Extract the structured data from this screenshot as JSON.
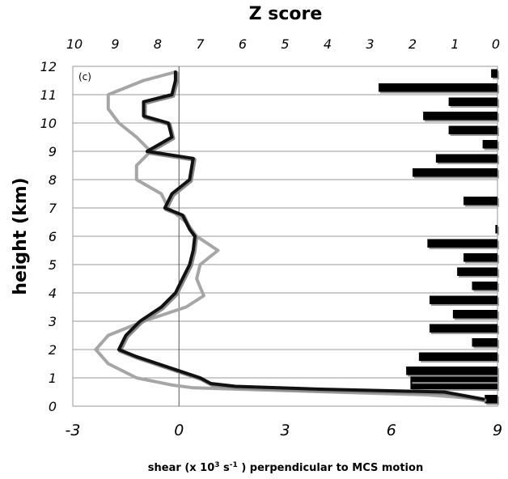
{
  "chart_data": {
    "type": "line",
    "panel_label": "(c)",
    "top_axis_title": "Z score",
    "y_axis_title": "height (km)",
    "x_axis_title": {
      "pre": "shear (x 10",
      "sup1": "3",
      "mid": " s",
      "sup2": "-1",
      "post": " ) perpendicular to MCS motion"
    },
    "x_range": [
      -3,
      9
    ],
    "x_ticks": [
      -3,
      0,
      3,
      6,
      9
    ],
    "z_range": [
      10,
      0
    ],
    "z_ticks": [
      10,
      9,
      8,
      7,
      6,
      5,
      4,
      3,
      2,
      1,
      0
    ],
    "y_range": [
      0,
      12
    ],
    "y_ticks": [
      0,
      1,
      2,
      3,
      4,
      5,
      6,
      7,
      8,
      9,
      10,
      11,
      12
    ],
    "grid": "horizontal",
    "colors": {
      "black_series": "#111111",
      "gray_series": "#a6a6a6",
      "zbar": "#000000",
      "zbar_shadow": "#9a9a9a"
    },
    "series": [
      {
        "color": "black",
        "points": [
          [
            8.6,
            0.25
          ],
          [
            7.5,
            0.5
          ],
          [
            4.0,
            0.6
          ],
          [
            1.6,
            0.7
          ],
          [
            0.9,
            0.8
          ],
          [
            0.6,
            1.0
          ],
          [
            0.0,
            1.25
          ],
          [
            -0.6,
            1.5
          ],
          [
            -1.2,
            1.75
          ],
          [
            -1.7,
            2.0
          ],
          [
            -1.5,
            2.5
          ],
          [
            -1.1,
            3.0
          ],
          [
            -0.5,
            3.5
          ],
          [
            -0.1,
            4.0
          ],
          [
            0.1,
            4.5
          ],
          [
            0.3,
            5.0
          ],
          [
            0.4,
            5.5
          ],
          [
            0.45,
            6.0
          ],
          [
            0.3,
            6.25
          ],
          [
            0.1,
            6.75
          ],
          [
            -0.4,
            7.0
          ],
          [
            -0.2,
            7.5
          ],
          [
            0.3,
            8.0
          ],
          [
            0.4,
            8.75
          ],
          [
            -0.9,
            9.0
          ],
          [
            -0.2,
            9.5
          ],
          [
            -0.3,
            10.0
          ],
          [
            -1.0,
            10.25
          ],
          [
            -1.0,
            10.75
          ],
          [
            -0.2,
            11.0
          ],
          [
            -0.1,
            11.5
          ],
          [
            -0.1,
            11.8
          ]
        ]
      },
      {
        "color": "gray",
        "points": [
          [
            8.6,
            0.25
          ],
          [
            7.0,
            0.4
          ],
          [
            3.0,
            0.55
          ],
          [
            0.4,
            0.65
          ],
          [
            -0.2,
            0.75
          ],
          [
            -1.2,
            1.0
          ],
          [
            -2.0,
            1.5
          ],
          [
            -2.35,
            2.0
          ],
          [
            -2.0,
            2.5
          ],
          [
            -1.0,
            3.0
          ],
          [
            0.2,
            3.5
          ],
          [
            0.7,
            3.9
          ],
          [
            0.5,
            4.5
          ],
          [
            0.6,
            5.0
          ],
          [
            1.1,
            5.5
          ],
          [
            0.5,
            6.0
          ],
          [
            0.2,
            6.5
          ],
          [
            -0.3,
            7.0
          ],
          [
            -0.5,
            7.5
          ],
          [
            -1.2,
            8.0
          ],
          [
            -1.2,
            8.5
          ],
          [
            -0.8,
            9.0
          ],
          [
            -1.2,
            9.5
          ],
          [
            -1.7,
            10.0
          ],
          [
            -2.0,
            10.5
          ],
          [
            -2.0,
            11.0
          ],
          [
            -1.0,
            11.5
          ],
          [
            -0.1,
            11.8
          ]
        ]
      }
    ],
    "zscore_bars": [
      {
        "height": 0.25,
        "z": 0.3
      },
      {
        "height": 0.75,
        "z": 2.05
      },
      {
        "height": 1.0,
        "z": 2.05
      },
      {
        "height": 1.25,
        "z": 2.15
      },
      {
        "height": 1.75,
        "z": 1.85
      },
      {
        "height": 2.25,
        "z": 0.6
      },
      {
        "height": 2.75,
        "z": 1.6
      },
      {
        "height": 3.25,
        "z": 1.05
      },
      {
        "height": 3.75,
        "z": 1.6
      },
      {
        "height": 4.25,
        "z": 0.6
      },
      {
        "height": 4.75,
        "z": 0.95
      },
      {
        "height": 5.25,
        "z": 0.8
      },
      {
        "height": 5.75,
        "z": 1.65
      },
      {
        "height": 6.25,
        "z": 0.05
      },
      {
        "height": 7.25,
        "z": 0.8
      },
      {
        "height": 8.25,
        "z": 2.0
      },
      {
        "height": 8.75,
        "z": 1.45
      },
      {
        "height": 9.25,
        "z": 0.35
      },
      {
        "height": 9.75,
        "z": 1.15
      },
      {
        "height": 10.25,
        "z": 1.75
      },
      {
        "height": 10.75,
        "z": 1.15
      },
      {
        "height": 11.25,
        "z": 2.8
      },
      {
        "height": 11.75,
        "z": 0.15
      }
    ]
  }
}
